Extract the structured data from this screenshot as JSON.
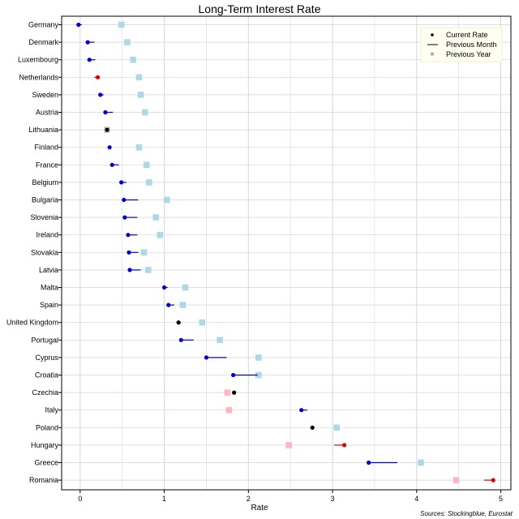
{
  "chart_data": {
    "type": "dot-arrow",
    "title": "Long-Term Interest Rate",
    "xlabel": "Rate",
    "ylabel": "",
    "xlim": [
      -0.22,
      5.12
    ],
    "x_ticks": [
      "0",
      "1",
      "2",
      "3",
      "4",
      "5"
    ],
    "grid": true,
    "legend_position": "top-right",
    "legend": {
      "current": "Current Rate",
      "month": "Previous Month",
      "year": "Previous Year"
    },
    "source": "Sources: Stockingblue, Eurostat",
    "colors": {
      "decrease": "#0000cc",
      "increase": "#dd0000",
      "unchanged": "#000000",
      "year_lower": "#add8e6",
      "year_higher": "#ffb6c1",
      "grid": "#d3d3d3",
      "legend_bg": "#fffff0"
    },
    "series": [
      {
        "country": "Germany",
        "current": -0.02,
        "previous_month": 0.02,
        "previous_year": 0.49
      },
      {
        "country": "Denmark",
        "current": 0.09,
        "previous_month": 0.17,
        "previous_year": 0.56
      },
      {
        "country": "Luxembourg",
        "current": 0.11,
        "previous_month": 0.18,
        "previous_year": 0.63
      },
      {
        "country": "Netherlands",
        "current": 0.21,
        "previous_month": 0.17,
        "previous_year": 0.7
      },
      {
        "country": "Sweden",
        "current": 0.24,
        "previous_month": 0.28,
        "previous_year": 0.72
      },
      {
        "country": "Austria",
        "current": 0.3,
        "previous_month": 0.39,
        "previous_year": 0.77
      },
      {
        "country": "Lithuania",
        "current": 0.32,
        "previous_month": 0.32,
        "previous_year": 0.32
      },
      {
        "country": "Finland",
        "current": 0.35,
        "previous_month": 0.37,
        "previous_year": 0.7
      },
      {
        "country": "France",
        "current": 0.38,
        "previous_month": 0.46,
        "previous_year": 0.79
      },
      {
        "country": "Belgium",
        "current": 0.49,
        "previous_month": 0.55,
        "previous_year": 0.82
      },
      {
        "country": "Bulgaria",
        "current": 0.52,
        "previous_month": 0.69,
        "previous_year": 1.03
      },
      {
        "country": "Slovenia",
        "current": 0.53,
        "previous_month": 0.68,
        "previous_year": 0.9
      },
      {
        "country": "Ireland",
        "current": 0.57,
        "previous_month": 0.68,
        "previous_year": 0.95
      },
      {
        "country": "Slovakia",
        "current": 0.58,
        "previous_month": 0.69,
        "previous_year": 0.76
      },
      {
        "country": "Latvia",
        "current": 0.59,
        "previous_month": 0.72,
        "previous_year": 0.81
      },
      {
        "country": "Malta",
        "current": 1.0,
        "previous_month": 1.04,
        "previous_year": 1.25
      },
      {
        "country": "Spain",
        "current": 1.05,
        "previous_month": 1.12,
        "previous_year": 1.22
      },
      {
        "country": "United Kingdom",
        "current": 1.17,
        "previous_month": 1.17,
        "previous_year": 1.45
      },
      {
        "country": "Portugal",
        "current": 1.2,
        "previous_month": 1.35,
        "previous_year": 1.66
      },
      {
        "country": "Cyprus",
        "current": 1.5,
        "previous_month": 1.74,
        "previous_year": 2.12
      },
      {
        "country": "Croatia",
        "current": 1.82,
        "previous_month": 2.11,
        "previous_year": 2.12
      },
      {
        "country": "Czechia",
        "current": 1.83,
        "previous_month": 1.83,
        "previous_year": 1.75
      },
      {
        "country": "Italy",
        "current": 2.63,
        "previous_month": 2.7,
        "previous_year": 1.77
      },
      {
        "country": "Poland",
        "current": 2.76,
        "previous_month": 2.76,
        "previous_year": 3.05
      },
      {
        "country": "Hungary",
        "current": 3.14,
        "previous_month": 3.02,
        "previous_year": 2.48
      },
      {
        "country": "Greece",
        "current": 3.43,
        "previous_month": 3.77,
        "previous_year": 4.05
      },
      {
        "country": "Romania",
        "current": 4.91,
        "previous_month": 4.8,
        "previous_year": 4.47
      }
    ]
  }
}
